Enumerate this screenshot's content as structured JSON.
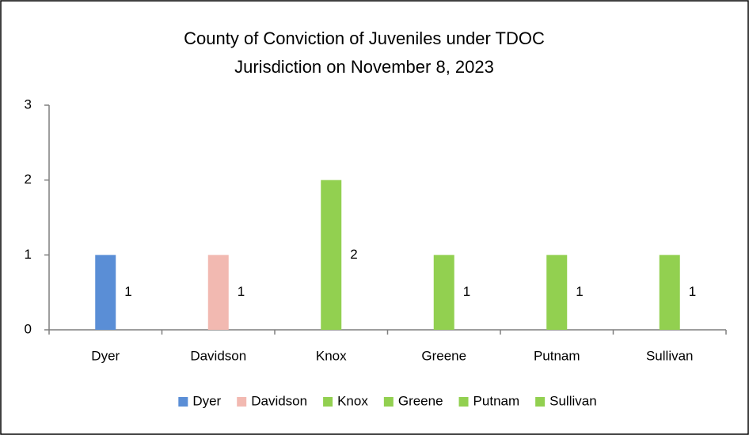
{
  "chart_data": {
    "type": "bar",
    "title": [
      "County of Conviction of Juveniles under TDOC",
      "Jurisdiction on November 8, 2023"
    ],
    "categories": [
      "Dyer",
      "Davidson",
      "Knox",
      "Greene",
      "Putnam",
      "Sullivan"
    ],
    "series": [
      {
        "name": "Dyer",
        "color": "#5a8ed6",
        "values": [
          1,
          null,
          null,
          null,
          null,
          null
        ]
      },
      {
        "name": "Davidson",
        "color": "#f2b9b1",
        "values": [
          null,
          1,
          null,
          null,
          null,
          null
        ]
      },
      {
        "name": "Knox",
        "color": "#92d050",
        "values": [
          null,
          null,
          2,
          null,
          null,
          null
        ]
      },
      {
        "name": "Greene",
        "color": "#92d050",
        "values": [
          null,
          null,
          null,
          1,
          null,
          null
        ]
      },
      {
        "name": "Putnam",
        "color": "#92d050",
        "values": [
          null,
          null,
          null,
          null,
          1,
          null
        ]
      },
      {
        "name": "Sullivan",
        "color": "#92d050",
        "values": [
          null,
          null,
          null,
          null,
          null,
          1
        ]
      }
    ],
    "ylim": [
      0,
      3
    ],
    "yticks": [
      0,
      1,
      2,
      3
    ],
    "grid": false,
    "legend": "bottom"
  }
}
